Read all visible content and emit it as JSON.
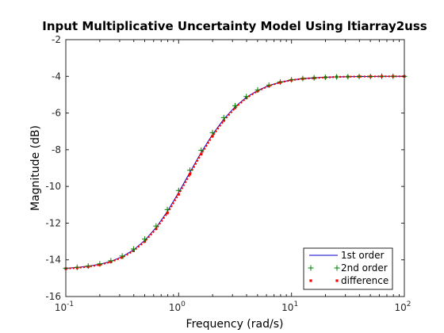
{
  "chart_data": {
    "type": "line",
    "title": "Input Multiplicative Uncertainty Model Using ltiarray2uss",
    "xlabel": "Frequency  (rad/s)",
    "ylabel": "Magnitude (dB)",
    "x_scale": "log",
    "xlim": [
      0.1,
      100
    ],
    "ylim": [
      -16,
      -2
    ],
    "x_ticks": [
      {
        "value": 0.1,
        "base": "10",
        "exp": "-1"
      },
      {
        "value": 1,
        "base": "10",
        "exp": "0"
      },
      {
        "value": 10,
        "base": "10",
        "exp": "1"
      },
      {
        "value": 100,
        "base": "10",
        "exp": "2"
      }
    ],
    "y_ticks": [
      -16,
      -14,
      -12,
      -10,
      -8,
      -6,
      -4,
      -2
    ],
    "y_tick_labels": [
      "-16",
      "-14",
      "-12",
      "-10",
      "-8",
      "-6",
      "-4",
      "-2"
    ],
    "grid": false,
    "legend_position": "bottom-right",
    "x": [
      0.1,
      0.126,
      0.158,
      0.2,
      0.251,
      0.316,
      0.398,
      0.501,
      0.631,
      0.794,
      1.0,
      1.259,
      1.585,
      1.995,
      2.512,
      3.162,
      3.981,
      5.012,
      6.31,
      7.943,
      10.0,
      12.59,
      15.85,
      19.95,
      25.12,
      31.62,
      39.81,
      50.12,
      63.1,
      79.43,
      100.0
    ],
    "series": [
      {
        "name": "1st order",
        "color": "#0000cc",
        "style": "line",
        "values": [
          -14.46,
          -14.42,
          -14.35,
          -14.24,
          -14.08,
          -13.83,
          -13.46,
          -12.94,
          -12.24,
          -11.36,
          -10.33,
          -9.23,
          -8.14,
          -7.17,
          -6.33,
          -5.66,
          -5.14,
          -4.77,
          -4.5,
          -4.32,
          -4.2,
          -4.13,
          -4.08,
          -4.05,
          -4.03,
          -4.02,
          -4.01,
          -4.01,
          -4.0,
          -4.0,
          -4.0
        ]
      },
      {
        "name": "2nd order",
        "color": "#008000",
        "style": "plus-markers",
        "values": [
          -14.46,
          -14.41,
          -14.34,
          -14.22,
          -14.05,
          -13.79,
          -13.41,
          -12.87,
          -12.16,
          -11.26,
          -10.22,
          -9.12,
          -8.03,
          -7.07,
          -6.25,
          -5.6,
          -5.1,
          -4.74,
          -4.48,
          -4.31,
          -4.19,
          -4.12,
          -4.08,
          -4.05,
          -4.03,
          -4.02,
          -4.01,
          -4.01,
          -4.0,
          -4.0,
          -4.0
        ]
      },
      {
        "name": "difference",
        "color": "#ff0000",
        "style": "dot-markers",
        "values": [
          -14.48,
          -14.44,
          -14.37,
          -14.27,
          -14.11,
          -13.87,
          -13.51,
          -13.0,
          -12.31,
          -11.45,
          -10.43,
          -9.33,
          -8.24,
          -7.26,
          -6.41,
          -5.72,
          -5.18,
          -4.8,
          -4.52,
          -4.33,
          -4.21,
          -4.13,
          -4.09,
          -4.06,
          -4.03,
          -4.02,
          -4.01,
          -4.01,
          -4.0,
          -4.0,
          -4.0
        ]
      }
    ]
  }
}
